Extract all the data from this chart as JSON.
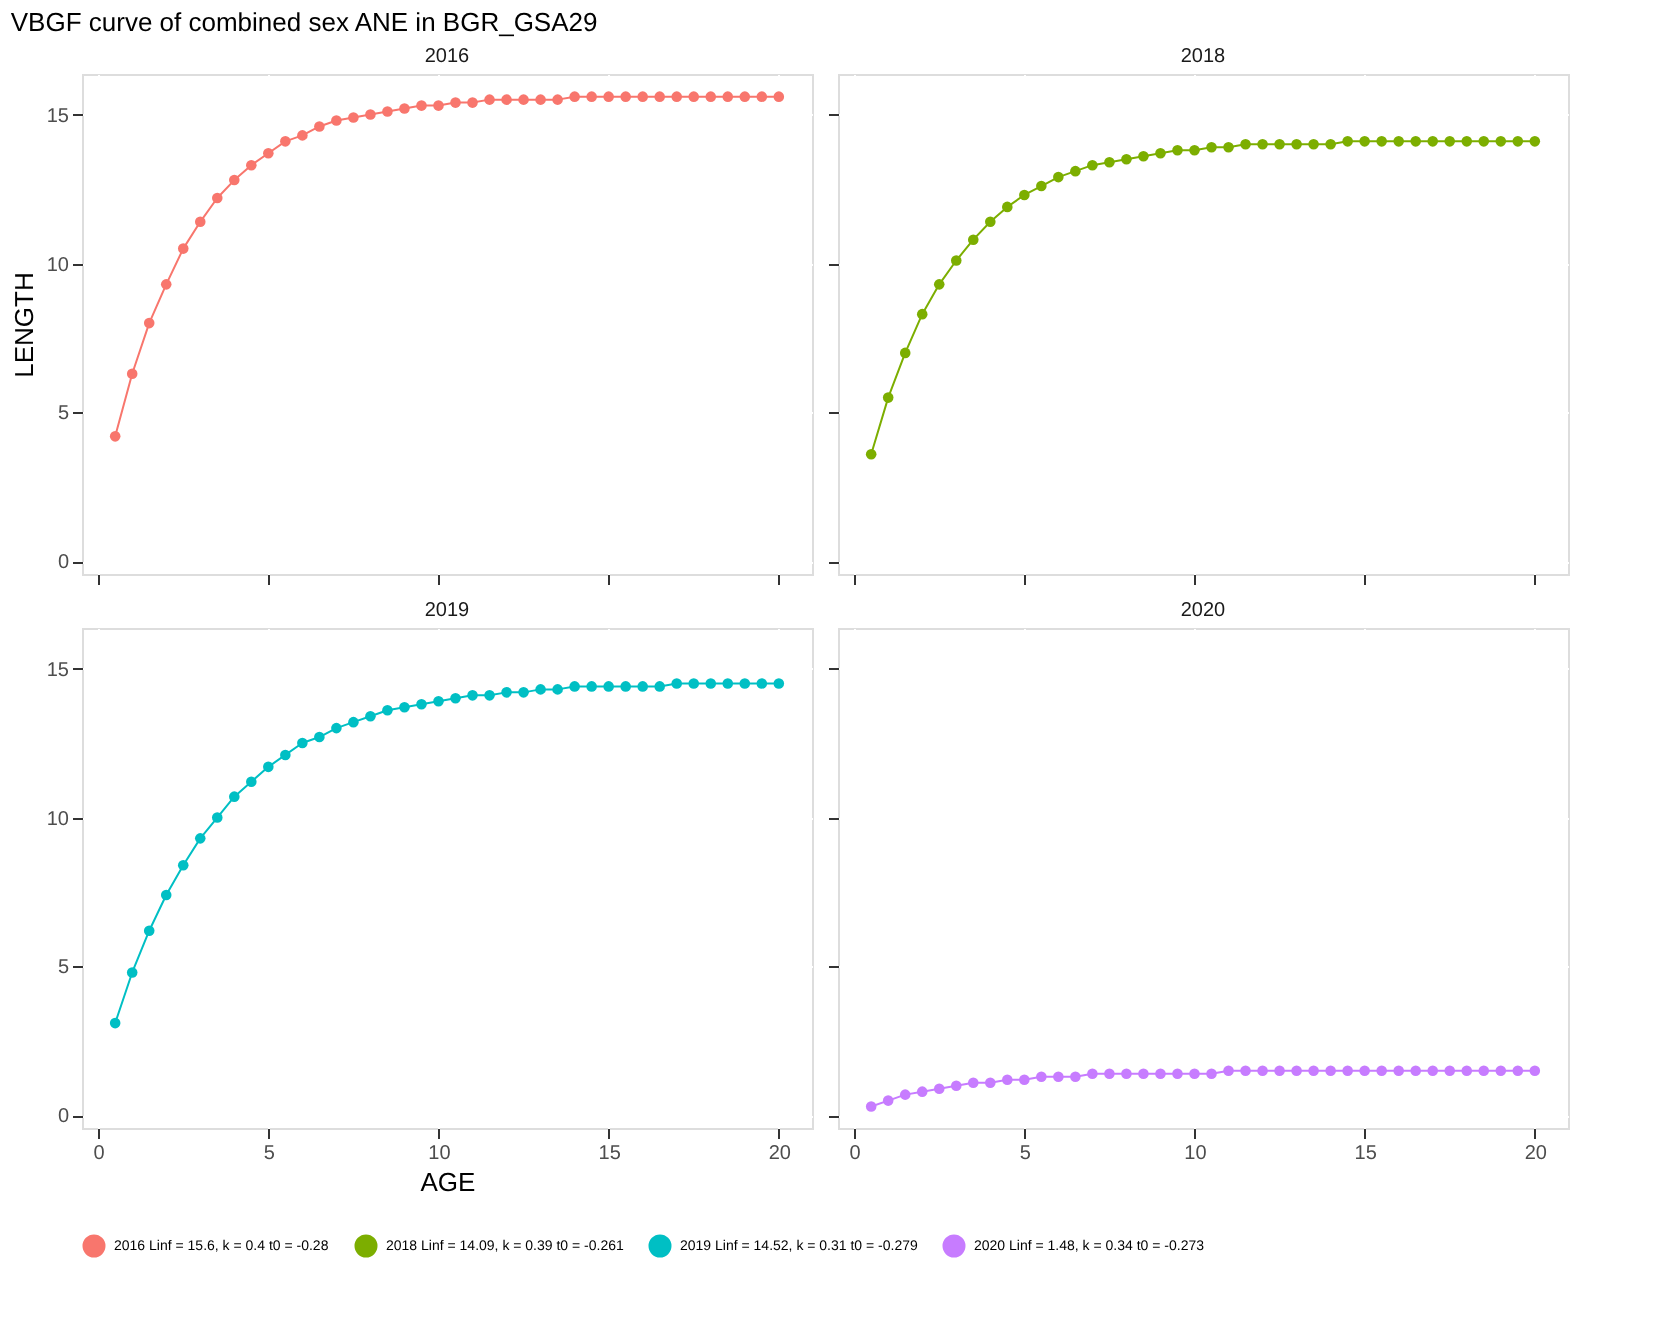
{
  "chart_data": [
    {
      "type": "line",
      "title": "2016",
      "annotations": [
        "VBGF curve of combined sex ANE in BGR_GSA29"
      ],
      "ylabel": "LENGTH",
      "x": [
        0.5,
        1,
        1.5,
        2,
        2.5,
        3,
        3.5,
        4,
        4.5,
        5,
        5.5,
        6,
        6.5,
        7,
        7.5,
        8,
        8.5,
        9,
        9.5,
        10,
        10.5,
        11,
        11.5,
        12,
        12.5,
        13,
        13.5,
        14,
        14.5,
        15,
        15.5,
        16,
        16.5,
        17,
        17.5,
        18,
        18.5,
        19,
        19.5,
        20
      ],
      "series": [
        {
          "name": "2016 Linf = 15.6, k = 0.4 t0 = -0.28",
          "color": "#f8766d",
          "values": [
            4.2,
            6.3,
            8.0,
            9.3,
            10.5,
            11.4,
            12.2,
            12.8,
            13.3,
            13.7,
            14.1,
            14.3,
            14.6,
            14.8,
            14.9,
            15.0,
            15.1,
            15.2,
            15.3,
            15.3,
            15.4,
            15.4,
            15.5,
            15.5,
            15.5,
            15.5,
            15.5,
            15.6,
            15.6,
            15.6,
            15.6,
            15.6,
            15.6,
            15.6,
            15.6,
            15.6,
            15.6,
            15.6,
            15.6,
            15.6
          ]
        }
      ],
      "xlim": [
        -0.475,
        20.975
      ],
      "ylim": [
        -0.42,
        16.36
      ],
      "xticks": [
        0,
        5,
        10,
        15,
        20
      ],
      "yticks": [
        0,
        5,
        10,
        15
      ],
      "grid": true,
      "legend": "bottom",
      "marker": "circle",
      "line_style": "solid",
      "tick_labels": "y"
    },
    {
      "type": "line",
      "title": "2018",
      "x": [
        0.5,
        1,
        1.5,
        2,
        2.5,
        3,
        3.5,
        4,
        4.5,
        5,
        5.5,
        6,
        6.5,
        7,
        7.5,
        8,
        8.5,
        9,
        9.5,
        10,
        10.5,
        11,
        11.5,
        12,
        12.5,
        13,
        13.5,
        14,
        14.5,
        15,
        15.5,
        16,
        16.5,
        17,
        17.5,
        18,
        18.5,
        19,
        19.5,
        20
      ],
      "series": [
        {
          "name": "2018 Linf = 14.09, k = 0.39 t0 = -0.261",
          "color": "#7cae00",
          "values": [
            3.6,
            5.5,
            7.0,
            8.3,
            9.3,
            10.1,
            10.8,
            11.4,
            11.9,
            12.3,
            12.6,
            12.9,
            13.1,
            13.3,
            13.4,
            13.5,
            13.6,
            13.7,
            13.8,
            13.8,
            13.9,
            13.9,
            14.0,
            14.0,
            14.0,
            14.0,
            14.0,
            14.0,
            14.1,
            14.1,
            14.1,
            14.1,
            14.1,
            14.1,
            14.1,
            14.1,
            14.1,
            14.1,
            14.1,
            14.1
          ]
        }
      ],
      "xlim": [
        -0.475,
        20.975
      ],
      "ylim": [
        -0.42,
        16.36
      ],
      "xticks": [
        0,
        5,
        10,
        15,
        20
      ],
      "yticks": [
        0,
        5,
        10,
        15
      ],
      "grid": true,
      "legend": "bottom",
      "marker": "circle",
      "line_style": "solid",
      "tick_labels": false
    },
    {
      "type": "line",
      "title": "2019",
      "xlabel": "AGE",
      "x": [
        0.5,
        1,
        1.5,
        2,
        2.5,
        3,
        3.5,
        4,
        4.5,
        5,
        5.5,
        6,
        6.5,
        7,
        7.5,
        8,
        8.5,
        9,
        9.5,
        10,
        10.5,
        11,
        11.5,
        12,
        12.5,
        13,
        13.5,
        14,
        14.5,
        15,
        15.5,
        16,
        16.5,
        17,
        17.5,
        18,
        18.5,
        19,
        19.5,
        20
      ],
      "series": [
        {
          "name": "2019 Linf = 14.52, k = 0.31 t0 = -0.279",
          "color": "#00bfc4",
          "values": [
            3.1,
            4.8,
            6.2,
            7.4,
            8.4,
            9.3,
            10.0,
            10.7,
            11.2,
            11.7,
            12.1,
            12.5,
            12.7,
            13.0,
            13.2,
            13.4,
            13.6,
            13.7,
            13.8,
            13.9,
            14.0,
            14.1,
            14.1,
            14.2,
            14.2,
            14.3,
            14.3,
            14.4,
            14.4,
            14.4,
            14.4,
            14.4,
            14.4,
            14.5,
            14.5,
            14.5,
            14.5,
            14.5,
            14.5,
            14.5
          ]
        }
      ],
      "xlim": [
        -0.475,
        20.975
      ],
      "ylim": [
        -0.42,
        16.36
      ],
      "xticks": [
        0,
        5,
        10,
        15,
        20
      ],
      "yticks": [
        0,
        5,
        10,
        15
      ],
      "grid": true,
      "legend": "bottom",
      "marker": "circle",
      "line_style": "solid"
    },
    {
      "type": "line",
      "title": "2020",
      "x": [
        0.5,
        1,
        1.5,
        2,
        2.5,
        3,
        3.5,
        4,
        4.5,
        5,
        5.5,
        6,
        6.5,
        7,
        7.5,
        8,
        8.5,
        9,
        9.5,
        10,
        10.5,
        11,
        11.5,
        12,
        12.5,
        13,
        13.5,
        14,
        14.5,
        15,
        15.5,
        16,
        16.5,
        17,
        17.5,
        18,
        18.5,
        19,
        19.5,
        20
      ],
      "series": [
        {
          "name": "2020 Linf = 1.48, k = 0.34 t0 = -0.273",
          "color": "#c77cff",
          "values": [
            0.3,
            0.5,
            0.7,
            0.8,
            0.9,
            1.0,
            1.1,
            1.1,
            1.2,
            1.2,
            1.3,
            1.3,
            1.3,
            1.4,
            1.4,
            1.4,
            1.4,
            1.4,
            1.4,
            1.4,
            1.4,
            1.5,
            1.5,
            1.5,
            1.5,
            1.5,
            1.5,
            1.5,
            1.5,
            1.5,
            1.5,
            1.5,
            1.5,
            1.5,
            1.5,
            1.5,
            1.5,
            1.5,
            1.5,
            1.5
          ]
        }
      ],
      "xlim": [
        -0.475,
        20.975
      ],
      "ylim": [
        -0.42,
        16.36
      ],
      "xticks": [
        0,
        5,
        10,
        15,
        20
      ],
      "yticks": [
        0,
        5,
        10,
        15
      ],
      "grid": true,
      "legend": "bottom",
      "marker": "circle",
      "line_style": "solid",
      "tick_labels": "x"
    }
  ]
}
